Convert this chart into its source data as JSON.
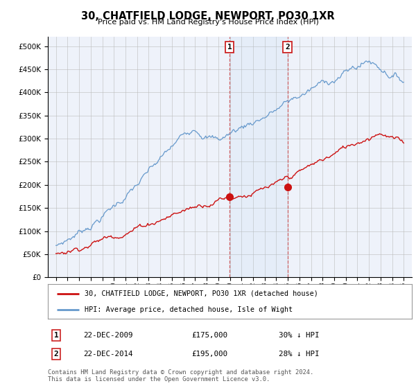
{
  "title": "30, CHATFIELD LODGE, NEWPORT, PO30 1XR",
  "subtitle": "Price paid vs. HM Land Registry's House Price Index (HPI)",
  "hpi_color": "#6699cc",
  "price_color": "#cc1111",
  "marker1_year": 2009.97,
  "marker2_year": 2014.97,
  "price_at_marker1": 175000,
  "price_at_marker2": 195000,
  "legend_line1": "30, CHATFIELD LODGE, NEWPORT, PO30 1XR (detached house)",
  "legend_line2": "HPI: Average price, detached house, Isle of Wight",
  "footer": "Contains HM Land Registry data © Crown copyright and database right 2024.\nThis data is licensed under the Open Government Licence v3.0.",
  "ylim": [
    0,
    520000
  ],
  "yticks": [
    0,
    50000,
    100000,
    150000,
    200000,
    250000,
    300000,
    350000,
    400000,
    450000,
    500000
  ],
  "background_color": "#ffffff",
  "plot_bg_color": "#eef2fa"
}
